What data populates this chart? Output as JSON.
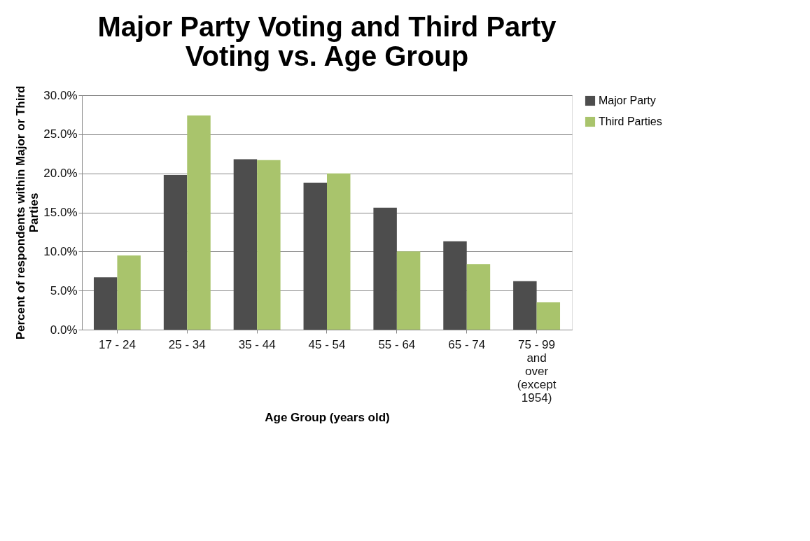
{
  "chart_data": {
    "type": "bar",
    "title": "Major Party Voting and Third Party Voting vs. Age Group",
    "xlabel": "Age Group (years old)",
    "ylabel": "Percent of respondents within Major or Third Parties",
    "categories": [
      "17 - 24",
      "25 - 34",
      "35 - 44",
      "45 - 54",
      "55 - 64",
      "65 - 74",
      "75 - 99 and over (except 1954)"
    ],
    "series": [
      {
        "name": "Major Party",
        "color": "#4d4d4d",
        "values": [
          6.7,
          19.8,
          21.8,
          18.8,
          15.6,
          11.3,
          6.2
        ]
      },
      {
        "name": "Third Parties",
        "color": "#a9c46c",
        "values": [
          9.5,
          27.4,
          21.7,
          20.0,
          10.0,
          8.4,
          3.5
        ]
      }
    ],
    "ylim": [
      0,
      30
    ],
    "yticks": [
      {
        "value": 0,
        "label": "0.0%"
      },
      {
        "value": 5,
        "label": "5.0%"
      },
      {
        "value": 10,
        "label": "10.0%"
      },
      {
        "value": 15,
        "label": "15.0%"
      },
      {
        "value": 20,
        "label": "20.0%"
      },
      {
        "value": 25,
        "label": "25.0%"
      },
      {
        "value": 30,
        "label": "30.0%"
      }
    ],
    "grid": "y",
    "legend": "right"
  }
}
